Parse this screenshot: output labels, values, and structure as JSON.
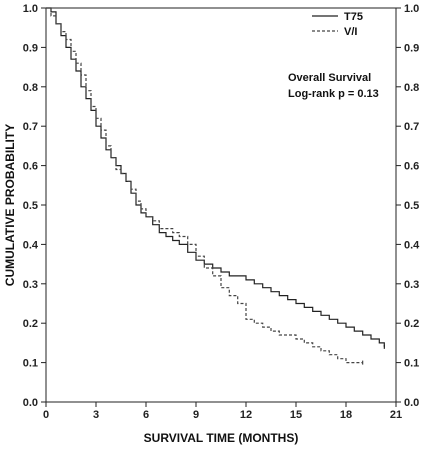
{
  "chart_data": {
    "type": "line",
    "title": "",
    "xlabel": "SURVIVAL TIME (MONTHS)",
    "ylabel": "CUMULATIVE PROBABILITY",
    "xlim": [
      0,
      21
    ],
    "ylim": [
      0,
      1.0
    ],
    "x_ticks": [
      "0",
      "3",
      "6",
      "9",
      "12",
      "15",
      "18",
      "21"
    ],
    "y_ticks": [
      "0.0",
      "0.1",
      "0.2",
      "0.3",
      "0.4",
      "0.5",
      "0.6",
      "0.7",
      "0.8",
      "0.9",
      "1.0"
    ],
    "grid": false,
    "legend_position": "top-right",
    "annotation_lines": [
      "Overall Survival",
      "Log-rank  p = 0.13"
    ],
    "series": [
      {
        "name": "T75",
        "style": "solid",
        "color": "#222222",
        "x": [
          0,
          0.3,
          0.6,
          0.9,
          1.2,
          1.5,
          1.8,
          2.1,
          2.4,
          2.7,
          3.0,
          3.3,
          3.6,
          3.9,
          4.2,
          4.5,
          4.8,
          5.1,
          5.4,
          5.7,
          6.0,
          6.4,
          6.8,
          7.2,
          7.6,
          8.0,
          8.5,
          9.0,
          9.5,
          10.0,
          10.5,
          11.0,
          11.5,
          12.0,
          12.5,
          13.0,
          13.5,
          14.0,
          14.5,
          15.0,
          15.5,
          16.0,
          16.5,
          17.0,
          17.5,
          18.0,
          18.5,
          19.0,
          19.5,
          20.0,
          20.3
        ],
        "y": [
          1.0,
          0.99,
          0.96,
          0.93,
          0.9,
          0.87,
          0.84,
          0.8,
          0.77,
          0.74,
          0.7,
          0.67,
          0.64,
          0.62,
          0.6,
          0.58,
          0.56,
          0.53,
          0.5,
          0.48,
          0.47,
          0.45,
          0.43,
          0.42,
          0.41,
          0.4,
          0.38,
          0.36,
          0.35,
          0.34,
          0.33,
          0.32,
          0.32,
          0.31,
          0.3,
          0.29,
          0.28,
          0.27,
          0.26,
          0.25,
          0.24,
          0.23,
          0.22,
          0.21,
          0.2,
          0.19,
          0.18,
          0.17,
          0.16,
          0.15,
          0.14
        ]
      },
      {
        "name": "V/I",
        "style": "dashed",
        "color": "#444444",
        "x": [
          0,
          0.3,
          0.6,
          0.9,
          1.2,
          1.5,
          1.8,
          2.1,
          2.4,
          2.7,
          3.0,
          3.3,
          3.6,
          3.9,
          4.2,
          4.5,
          4.8,
          5.1,
          5.4,
          5.7,
          6.0,
          6.4,
          6.8,
          7.2,
          7.6,
          8.0,
          8.5,
          9.0,
          9.5,
          10.0,
          10.5,
          11.0,
          11.5,
          12.0,
          12.5,
          13.0,
          13.5,
          14.0,
          14.5,
          15.0,
          15.5,
          16.0,
          16.5,
          17.0,
          17.5,
          18.0,
          18.5,
          19.0
        ],
        "y": [
          1.0,
          0.98,
          0.96,
          0.94,
          0.92,
          0.89,
          0.86,
          0.83,
          0.79,
          0.75,
          0.72,
          0.69,
          0.65,
          0.62,
          0.59,
          0.58,
          0.56,
          0.54,
          0.51,
          0.49,
          0.47,
          0.46,
          0.44,
          0.44,
          0.43,
          0.42,
          0.4,
          0.37,
          0.34,
          0.32,
          0.29,
          0.27,
          0.25,
          0.21,
          0.2,
          0.19,
          0.18,
          0.17,
          0.17,
          0.16,
          0.15,
          0.14,
          0.13,
          0.12,
          0.11,
          0.1,
          0.1,
          0.1
        ]
      }
    ]
  }
}
